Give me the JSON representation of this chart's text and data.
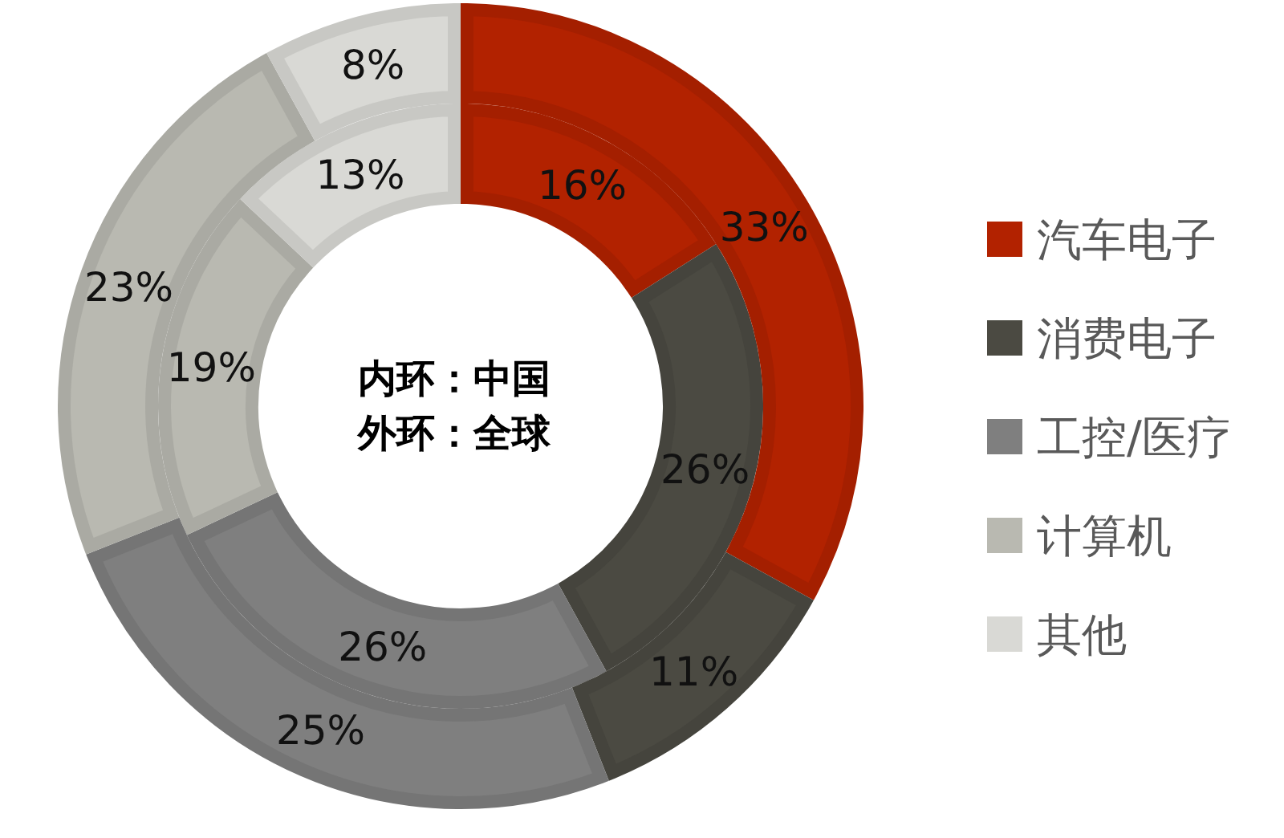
{
  "chart_data": {
    "type": "donut",
    "categories": [
      "汽车电子",
      "消费电子",
      "工控/医疗",
      "计算机",
      "其他"
    ],
    "colors": [
      "#b22200",
      "#4b4a42",
      "#7f7f7f",
      "#b9b9b1",
      "#d9d9d5"
    ],
    "series": [
      {
        "values": [
          16,
          26,
          26,
          19,
          13
        ],
        "value_labels": [
          "16%",
          "26%",
          "26%",
          "19%",
          "13%"
        ]
      },
      {
        "values": [
          33,
          11,
          25,
          23,
          8
        ],
        "value_labels": [
          "33%",
          "11%",
          "25%",
          "23%",
          "8%"
        ]
      }
    ],
    "annotations": [
      "内环：中国",
      "外环：全球"
    ],
    "legend": "right"
  }
}
